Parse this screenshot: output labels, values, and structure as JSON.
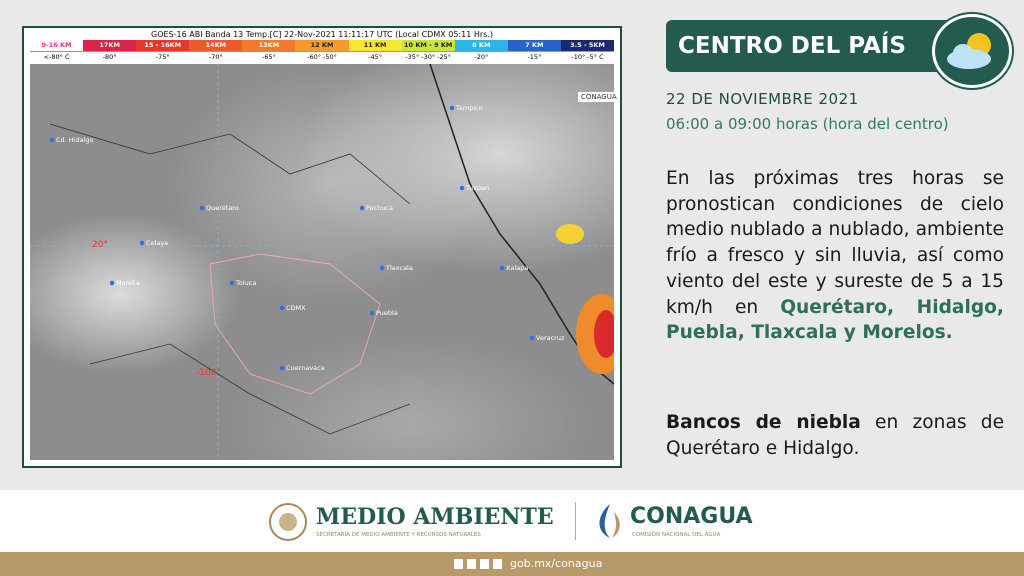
{
  "map": {
    "title": "GOES-16 ABI Banda 13 Temp.[C] 22-Nov-2021 11:11:17 UTC (Local CDMX  05:11 Hrs.)",
    "scale": [
      {
        "height": "9-16 KM",
        "temp": "<-80° C",
        "color": "#ffffff",
        "text": "#e0338a"
      },
      {
        "height": "17KM",
        "temp": "-80°",
        "color": "#d9234a",
        "text": "#ffffff"
      },
      {
        "height": "15 - 16KM",
        "temp": "-75°",
        "color": "#e6382a",
        "text": "#ffffff"
      },
      {
        "height": "14KM",
        "temp": "-70°",
        "color": "#ef5a2a",
        "text": "#ffffff"
      },
      {
        "height": "13KM",
        "temp": "-65°",
        "color": "#f27a2a",
        "text": "#ffffff"
      },
      {
        "height": "12 KM",
        "temp": "-60° -50°",
        "color": "#f59a2c",
        "text": "#222222"
      },
      {
        "height": "11 KM",
        "temp": "-45°",
        "color": "#f7e731",
        "text": "#222222"
      },
      {
        "height": "10 KM - 9 KM",
        "temp": "-35°  -30°  -25°",
        "color": "#c8e63a",
        "text": "#222222"
      },
      {
        "height": "8 KM",
        "temp": "-20°",
        "color": "#2fb4e8",
        "text": "#ffffff"
      },
      {
        "height": "7 KM",
        "temp": "-15°",
        "color": "#2a62c9",
        "text": "#ffffff"
      },
      {
        "height": "3.5 - 5KM",
        "temp": "-10°  -5° C",
        "color": "#1a2a6e",
        "text": "#ffffff"
      }
    ],
    "lat_label": "20°",
    "lon_label": "-100°",
    "source": "CONAGUA",
    "places": [
      "Cd. Hidalgo",
      "CDMX",
      "Pachuca",
      "Tlaxcala",
      "Puebla",
      "Querétaro",
      "Toluca",
      "Cuernavaca",
      "Tampico",
      "Tuxpan",
      "Celaya",
      "Morelia",
      "Veracruz",
      "Xalapa"
    ]
  },
  "header": {
    "title": "CENTRO DEL PAÍS"
  },
  "date": "22 DE NOVIEMBRE 2021",
  "time": "06:00 a 09:00 horas (hora del centro)",
  "body": {
    "text": "En las próximas tres horas se pronostican condiciones de cielo medio nublado a nublado, ambiente frío a fresco y sin lluvia, así como viento del este y sureste de 5 a 15 km/h en ",
    "states": "Querétaro, Hidalgo, Puebla, Tlaxcala y Morelos."
  },
  "fog": {
    "bold": "Bancos de niebla",
    "text": " en zonas de Querétaro e Hidalgo."
  },
  "footer": {
    "agency1": "MEDIO AMBIENTE",
    "agency1_sub": "SECRETARÍA DE MEDIO AMBIENTE Y RECURSOS NATURALES",
    "agency2": "CONAGUA",
    "agency2_sub": "COMISIÓN NACIONAL DEL AGUA",
    "url": "gob.mx/conagua"
  }
}
